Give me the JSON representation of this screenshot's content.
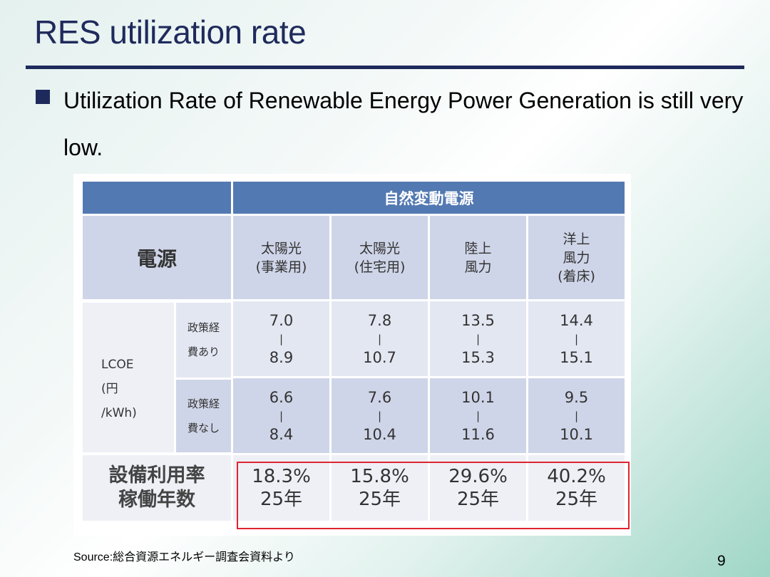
{
  "slide": {
    "title": "RES utilization rate",
    "bullet": "Utilization Rate of Renewable Energy Power Generation is still very low.",
    "source": "Source:総合資源エネルギー調査会資料より",
    "page_number": "9"
  },
  "table": {
    "group_header": "自然変動電源",
    "power_source_label": "電源",
    "columns": [
      {
        "line1": "太陽光",
        "line2": "(事業用)",
        "line3": ""
      },
      {
        "line1": "太陽光",
        "line2": "(住宅用)",
        "line3": ""
      },
      {
        "line1": "陸上",
        "line2": "風力",
        "line3": ""
      },
      {
        "line1": "洋上",
        "line2": "風力",
        "line3": "(着床)"
      }
    ],
    "lcoe_label": {
      "line1": "LCOE",
      "line2": "(円",
      "line3": "/kWh)"
    },
    "range_separator": "|",
    "rows": [
      {
        "policy_line1": "政策経",
        "policy_line2": "費あり",
        "values": [
          {
            "low": "7.0",
            "high": "8.9"
          },
          {
            "low": "7.8",
            "high": "10.7"
          },
          {
            "low": "13.5",
            "high": "15.3"
          },
          {
            "low": "14.4",
            "high": "15.1"
          }
        ]
      },
      {
        "policy_line1": "政策経",
        "policy_line2": "費なし",
        "values": [
          {
            "low": "6.6",
            "high": "8.4"
          },
          {
            "low": "7.6",
            "high": "10.4"
          },
          {
            "low": "10.1",
            "high": "11.6"
          },
          {
            "low": "9.5",
            "high": "10.1"
          }
        ]
      }
    ],
    "utilization_label": {
      "line1": "設備利用率",
      "line2": "稼働年数"
    },
    "utilization": [
      {
        "rate": "18.3%",
        "years": "25年"
      },
      {
        "rate": "15.8%",
        "years": "25年"
      },
      {
        "rate": "29.6%",
        "years": "25年"
      },
      {
        "rate": "40.2%",
        "years": "25年"
      }
    ],
    "highlight_color": "#e0232f",
    "header_color": "#5379b2"
  }
}
